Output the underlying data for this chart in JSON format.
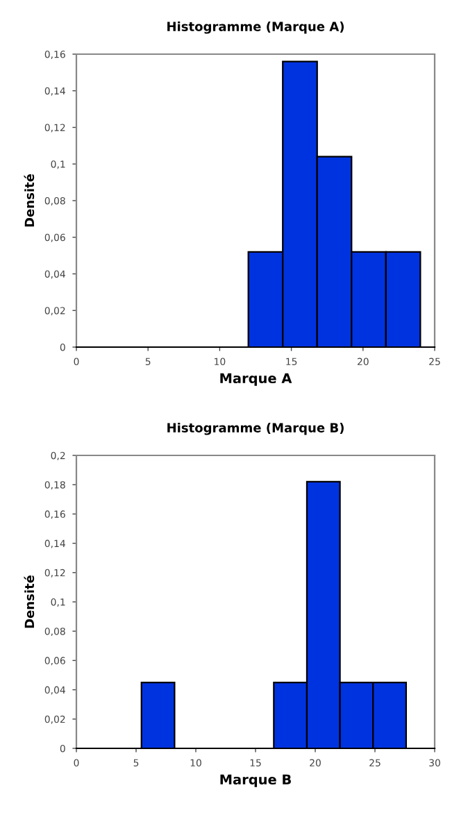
{
  "chart_data": [
    {
      "type": "histogram",
      "title": "Histogramme (Marque A)",
      "xlabel": "Marque A",
      "ylabel": "Densité",
      "color": "#0033e0",
      "bins": [
        12,
        14.4,
        16.8,
        19.2,
        21.6,
        24
      ],
      "values": [
        0.052,
        0.156,
        0.104,
        0.052,
        0.052
      ],
      "xlim": [
        0,
        25
      ],
      "xticks": [
        0,
        5,
        10,
        15,
        20,
        25
      ],
      "ylim": [
        0,
        0.16
      ],
      "yticks": [
        0,
        {
          "value": 0.02,
          "label": "0,02"
        },
        {
          "value": 0.04,
          "label": "0,04"
        },
        {
          "value": 0.06,
          "label": "0,06"
        },
        {
          "value": 0.08,
          "label": "0,08"
        },
        {
          "value": 0.1,
          "label": "0,1"
        },
        {
          "value": 0.12,
          "label": "0,12"
        },
        {
          "value": 0.14,
          "label": "0,14"
        },
        {
          "value": 0.16,
          "label": "0,16"
        }
      ]
    },
    {
      "type": "histogram",
      "title": "Histogramme (Marque B)",
      "xlabel": "Marque B",
      "ylabel": "Densité",
      "color": "#0033e0",
      "bins": [
        5.45,
        8.22,
        10.99,
        13.76,
        16.53,
        19.3,
        22.07,
        24.84,
        27.61
      ],
      "values": [
        0.045,
        0,
        0,
        0,
        0.045,
        0.182,
        0.045,
        0.045
      ],
      "xlim": [
        0,
        30
      ],
      "xticks": [
        0,
        5,
        10,
        15,
        20,
        25,
        30
      ],
      "ylim": [
        0,
        0.2
      ],
      "yticks": [
        0,
        {
          "value": 0.02,
          "label": "0,02"
        },
        {
          "value": 0.04,
          "label": "0,04"
        },
        {
          "value": 0.06,
          "label": "0,06"
        },
        {
          "value": 0.08,
          "label": "0,08"
        },
        {
          "value": 0.1,
          "label": "0,1"
        },
        {
          "value": 0.12,
          "label": "0,12"
        },
        {
          "value": 0.14,
          "label": "0,14"
        },
        {
          "value": 0.16,
          "label": "0,16"
        },
        {
          "value": 0.18,
          "label": "0,18"
        },
        {
          "value": 0.2,
          "label": "0,2"
        }
      ]
    }
  ]
}
